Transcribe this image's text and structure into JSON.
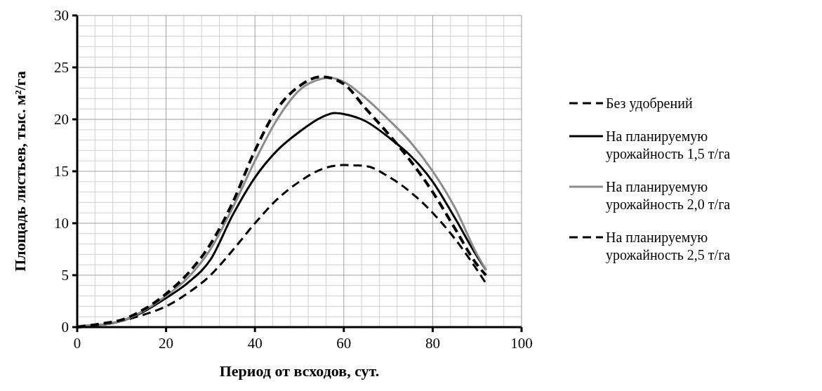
{
  "chart_data": {
    "type": "line",
    "xlabel": "Период от всходов, сут.",
    "ylabel": "Площадь листьев, тыс. м²/га",
    "xlim": [
      0,
      100
    ],
    "ylim": [
      0,
      30
    ],
    "xticks": [
      0,
      20,
      40,
      60,
      80,
      100
    ],
    "yticks": [
      0,
      5,
      10,
      15,
      20,
      25,
      30
    ],
    "grid": true,
    "legend": "right",
    "marker": "none",
    "series": [
      {
        "name": "Без удобрений",
        "color": "#000000",
        "line_style": "dashed",
        "x": [
          0,
          5,
          10,
          15,
          20,
          25,
          30,
          35,
          40,
          45,
          50,
          55,
          60,
          65,
          70,
          75,
          80,
          85,
          90,
          92
        ],
        "values": [
          0,
          0.2,
          0.6,
          1.2,
          2,
          3.3,
          5,
          7.4,
          10,
          12.3,
          14,
          15.2,
          15.6,
          15.5,
          14.5,
          13,
          11,
          8.5,
          5.5,
          4.2
        ]
      },
      {
        "name": "На планируемую урожайность 1,5 т/га",
        "color": "#000000",
        "line_style": "solid",
        "x": [
          0,
          5,
          10,
          15,
          20,
          25,
          30,
          35,
          40,
          45,
          50,
          55,
          58,
          60,
          65,
          70,
          75,
          80,
          85,
          90,
          92
        ],
        "values": [
          0.1,
          0.2,
          0.6,
          1.5,
          2.8,
          4.3,
          6.5,
          10.8,
          14.4,
          17,
          18.8,
          20.2,
          20.6,
          20.5,
          19.8,
          18.3,
          16.5,
          14,
          10.5,
          6.8,
          5.5
        ]
      },
      {
        "name": "На планируемую урожайность 2,0 т/га",
        "color": "#8c8c8c",
        "line_style": "solid",
        "x": [
          0,
          5,
          10,
          15,
          20,
          25,
          30,
          35,
          40,
          45,
          50,
          55,
          57,
          60,
          65,
          70,
          75,
          80,
          85,
          90,
          92
        ],
        "values": [
          0.1,
          0.2,
          0.6,
          1.6,
          3,
          4.8,
          7.5,
          11.5,
          16,
          20,
          22.8,
          23.9,
          24,
          23.6,
          22,
          20,
          17.8,
          15,
          11.5,
          7,
          5.5
        ]
      },
      {
        "name": "На планируемую урожайность 2,5 т/га",
        "color": "#000000",
        "line_style": "dashed",
        "x": [
          0,
          5,
          10,
          15,
          20,
          25,
          30,
          35,
          40,
          45,
          50,
          55,
          60,
          65,
          70,
          75,
          80,
          85,
          90,
          92
        ],
        "values": [
          0,
          0.3,
          0.7,
          1.7,
          3.2,
          5.2,
          8,
          12,
          17,
          21,
          23.2,
          24.1,
          23.4,
          21,
          18.6,
          16,
          13,
          9.5,
          6,
          5
        ]
      }
    ]
  }
}
